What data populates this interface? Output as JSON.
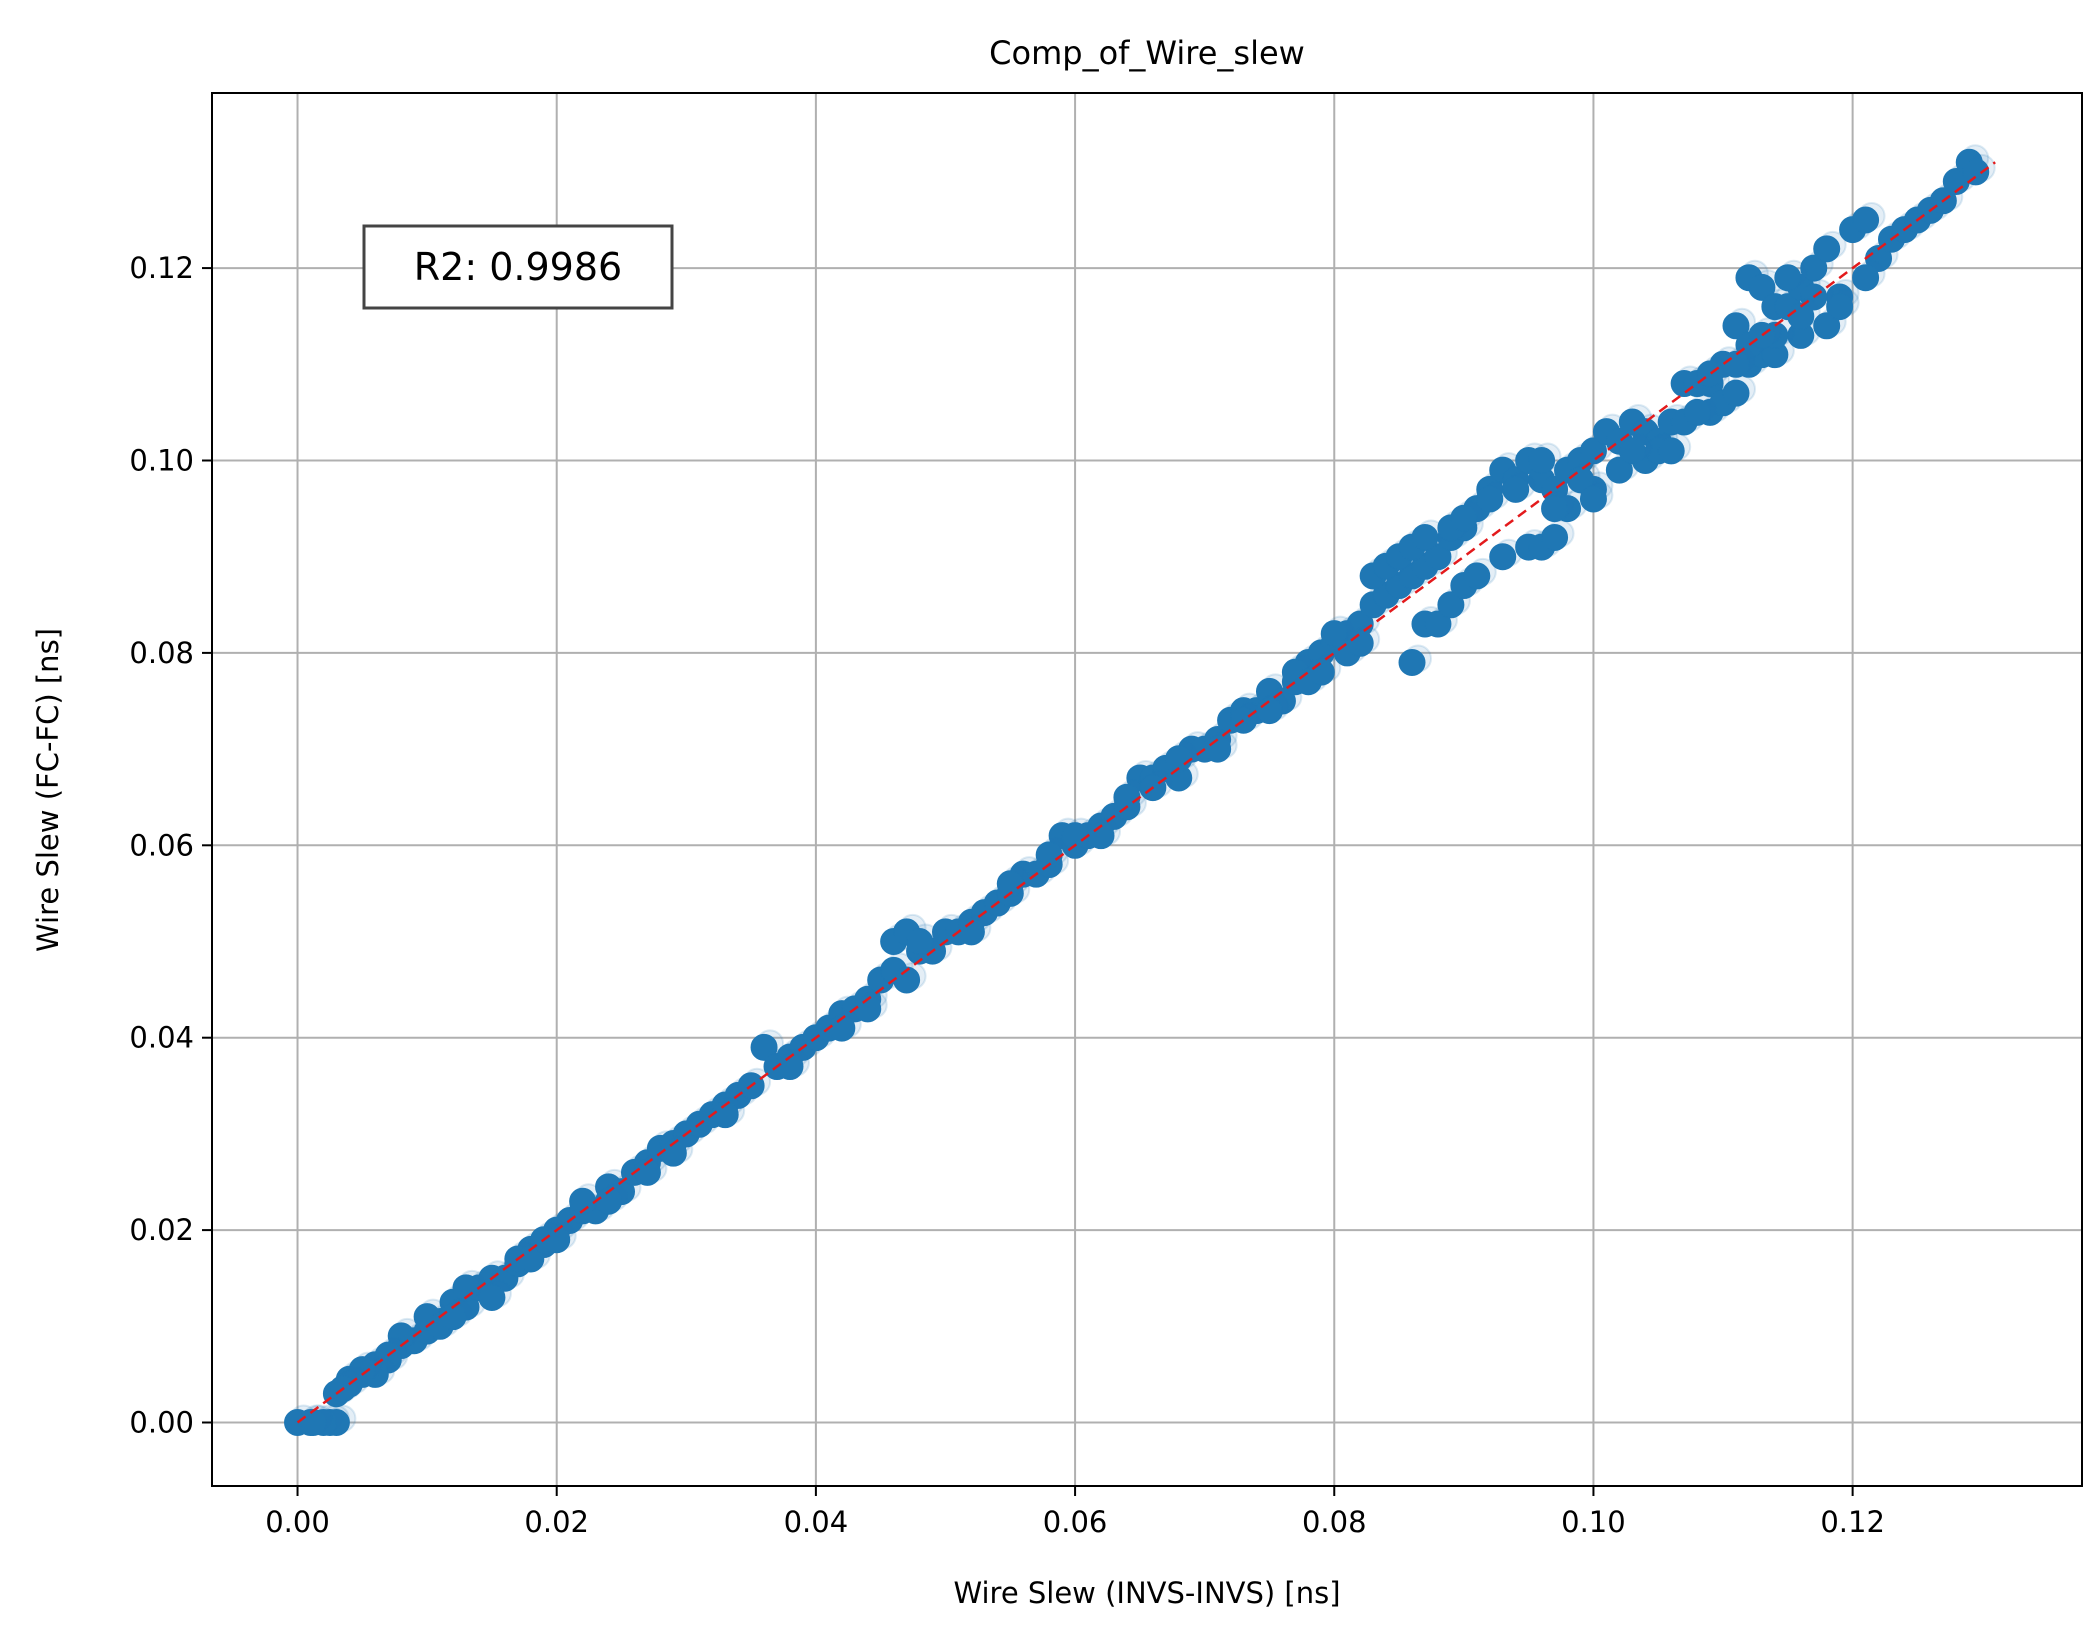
{
  "chart_data": {
    "type": "scatter",
    "title": "Comp_of_Wire_slew",
    "xlabel": "Wire Slew (INVS-INVS) [ns]",
    "ylabel": "Wire Slew (FC-FC) [ns]",
    "xlim": [
      -0.0066,
      0.1377
    ],
    "ylim": [
      -0.0066,
      0.1382
    ],
    "xticks": [
      0.0,
      0.02,
      0.04,
      0.06,
      0.08,
      0.1,
      0.12
    ],
    "xtick_labels": [
      "0.00",
      "0.02",
      "0.04",
      "0.06",
      "0.08",
      "0.10",
      "0.12"
    ],
    "yticks": [
      0.0,
      0.02,
      0.04,
      0.06,
      0.08,
      0.1,
      0.12
    ],
    "ytick_labels": [
      "0.00",
      "0.02",
      "0.04",
      "0.06",
      "0.08",
      "0.10",
      "0.12"
    ],
    "grid": true,
    "annotation": "R2: 0.9986",
    "annotation_position": "top-left",
    "point_color": "#1f77b4",
    "reference_line": {
      "style": "dashed",
      "color": "#e31a1c",
      "from": [
        0.0,
        0.0
      ],
      "to": [
        0.131,
        0.131
      ]
    },
    "series": [
      {
        "points": [
          [
            0.0,
            0.0
          ],
          [
            0.001,
            0.0
          ],
          [
            0.0025,
            0.0
          ],
          [
            0.003,
            0.0
          ],
          [
            0.002,
            0.0
          ],
          [
            0.0012,
            0.0
          ],
          [
            0.003,
            0.003
          ],
          [
            0.004,
            0.0045
          ],
          [
            0.005,
            0.005
          ],
          [
            0.006,
            0.006
          ],
          [
            0.007,
            0.0065
          ],
          [
            0.008,
            0.008
          ],
          [
            0.009,
            0.0085
          ],
          [
            0.01,
            0.0095
          ],
          [
            0.011,
            0.0105
          ],
          [
            0.012,
            0.0125
          ],
          [
            0.013,
            0.012
          ],
          [
            0.014,
            0.014
          ],
          [
            0.015,
            0.015
          ],
          [
            0.016,
            0.015
          ],
          [
            0.017,
            0.0165
          ],
          [
            0.018,
            0.018
          ],
          [
            0.019,
            0.0185
          ],
          [
            0.02,
            0.02
          ],
          [
            0.021,
            0.021
          ],
          [
            0.022,
            0.022
          ],
          [
            0.023,
            0.022
          ],
          [
            0.024,
            0.0245
          ],
          [
            0.025,
            0.024
          ],
          [
            0.026,
            0.026
          ],
          [
            0.027,
            0.027
          ],
          [
            0.028,
            0.0285
          ],
          [
            0.029,
            0.029
          ],
          [
            0.03,
            0.03
          ],
          [
            0.031,
            0.031
          ],
          [
            0.032,
            0.032
          ],
          [
            0.033,
            0.033
          ],
          [
            0.034,
            0.034
          ],
          [
            0.035,
            0.035
          ],
          [
            0.036,
            0.039
          ],
          [
            0.037,
            0.037
          ],
          [
            0.038,
            0.038
          ],
          [
            0.039,
            0.039
          ],
          [
            0.04,
            0.04
          ],
          [
            0.041,
            0.041
          ],
          [
            0.042,
            0.0425
          ],
          [
            0.043,
            0.043
          ],
          [
            0.044,
            0.044
          ],
          [
            0.045,
            0.046
          ],
          [
            0.046,
            0.05
          ],
          [
            0.047,
            0.051
          ],
          [
            0.048,
            0.049
          ],
          [
            0.049,
            0.049
          ],
          [
            0.05,
            0.051
          ],
          [
            0.051,
            0.051
          ],
          [
            0.052,
            0.052
          ],
          [
            0.053,
            0.053
          ],
          [
            0.054,
            0.054
          ],
          [
            0.055,
            0.055
          ],
          [
            0.056,
            0.057
          ],
          [
            0.057,
            0.057
          ],
          [
            0.058,
            0.058
          ],
          [
            0.059,
            0.061
          ],
          [
            0.06,
            0.06
          ],
          [
            0.061,
            0.061
          ],
          [
            0.062,
            0.062
          ],
          [
            0.063,
            0.063
          ],
          [
            0.064,
            0.064
          ],
          [
            0.065,
            0.067
          ],
          [
            0.066,
            0.067
          ],
          [
            0.067,
            0.068
          ],
          [
            0.068,
            0.067
          ],
          [
            0.069,
            0.07
          ],
          [
            0.07,
            0.07
          ],
          [
            0.071,
            0.071
          ],
          [
            0.072,
            0.073
          ],
          [
            0.073,
            0.074
          ],
          [
            0.074,
            0.074
          ],
          [
            0.075,
            0.076
          ],
          [
            0.076,
            0.075
          ],
          [
            0.077,
            0.077
          ],
          [
            0.078,
            0.079
          ],
          [
            0.079,
            0.08
          ],
          [
            0.08,
            0.081
          ],
          [
            0.081,
            0.082
          ],
          [
            0.082,
            0.083
          ],
          [
            0.083,
            0.085
          ],
          [
            0.084,
            0.086
          ],
          [
            0.085,
            0.087
          ],
          [
            0.086,
            0.088
          ],
          [
            0.087,
            0.089
          ],
          [
            0.088,
            0.09
          ],
          [
            0.089,
            0.092
          ],
          [
            0.09,
            0.093
          ],
          [
            0.091,
            0.095
          ],
          [
            0.092,
            0.097
          ],
          [
            0.093,
            0.099
          ],
          [
            0.094,
            0.098
          ],
          [
            0.095,
            0.1
          ],
          [
            0.096,
            0.098
          ],
          [
            0.097,
            0.097
          ],
          [
            0.098,
            0.099
          ],
          [
            0.099,
            0.1
          ],
          [
            0.1,
            0.101
          ],
          [
            0.101,
            0.103
          ],
          [
            0.102,
            0.102
          ],
          [
            0.103,
            0.104
          ],
          [
            0.104,
            0.103
          ],
          [
            0.105,
            0.102
          ],
          [
            0.106,
            0.104
          ],
          [
            0.107,
            0.108
          ],
          [
            0.108,
            0.108
          ],
          [
            0.109,
            0.108
          ],
          [
            0.11,
            0.11
          ],
          [
            0.111,
            0.114
          ],
          [
            0.112,
            0.119
          ],
          [
            0.113,
            0.118
          ],
          [
            0.114,
            0.116
          ],
          [
            0.115,
            0.116
          ],
          [
            0.116,
            0.118
          ],
          [
            0.117,
            0.12
          ],
          [
            0.118,
            0.122
          ],
          [
            0.119,
            0.117
          ],
          [
            0.12,
            0.124
          ],
          [
            0.121,
            0.125
          ],
          [
            0.122,
            0.121
          ],
          [
            0.123,
            0.123
          ],
          [
            0.124,
            0.124
          ],
          [
            0.125,
            0.125
          ],
          [
            0.126,
            0.126
          ],
          [
            0.127,
            0.127
          ],
          [
            0.128,
            0.129
          ],
          [
            0.129,
            0.131
          ],
          [
            0.1295,
            0.13
          ],
          [
            0.086,
            0.079
          ],
          [
            0.087,
            0.083
          ],
          [
            0.088,
            0.083
          ],
          [
            0.089,
            0.085
          ],
          [
            0.09,
            0.087
          ],
          [
            0.091,
            0.088
          ],
          [
            0.093,
            0.09
          ],
          [
            0.095,
            0.091
          ],
          [
            0.096,
            0.091
          ],
          [
            0.097,
            0.092
          ],
          [
            0.098,
            0.095
          ],
          [
            0.1,
            0.097
          ],
          [
            0.102,
            0.099
          ],
          [
            0.104,
            0.1
          ],
          [
            0.105,
            0.101
          ],
          [
            0.107,
            0.104
          ],
          [
            0.109,
            0.105
          ],
          [
            0.11,
            0.106
          ],
          [
            0.111,
            0.107
          ],
          [
            0.112,
            0.11
          ],
          [
            0.113,
            0.111
          ],
          [
            0.114,
            0.111
          ],
          [
            0.116,
            0.113
          ],
          [
            0.118,
            0.114
          ],
          [
            0.119,
            0.116
          ],
          [
            0.112,
            0.112
          ],
          [
            0.114,
            0.113
          ],
          [
            0.117,
            0.117
          ],
          [
            0.121,
            0.119
          ],
          [
            0.115,
            0.119
          ],
          [
            0.083,
            0.088
          ],
          [
            0.084,
            0.089
          ],
          [
            0.085,
            0.09
          ],
          [
            0.086,
            0.091
          ],
          [
            0.087,
            0.092
          ],
          [
            0.089,
            0.093
          ],
          [
            0.09,
            0.094
          ],
          [
            0.092,
            0.096
          ],
          [
            0.094,
            0.097
          ],
          [
            0.096,
            0.1
          ],
          [
            0.097,
            0.095
          ],
          [
            0.099,
            0.098
          ],
          [
            0.1,
            0.096
          ],
          [
            0.103,
            0.101
          ],
          [
            0.106,
            0.101
          ],
          [
            0.108,
            0.105
          ],
          [
            0.109,
            0.109
          ],
          [
            0.111,
            0.11
          ],
          [
            0.113,
            0.113
          ],
          [
            0.116,
            0.115
          ],
          [
            0.022,
            0.023
          ],
          [
            0.024,
            0.023
          ],
          [
            0.027,
            0.026
          ],
          [
            0.029,
            0.028
          ],
          [
            0.033,
            0.032
          ],
          [
            0.038,
            0.037
          ],
          [
            0.042,
            0.041
          ],
          [
            0.044,
            0.043
          ],
          [
            0.046,
            0.047
          ],
          [
            0.047,
            0.046
          ],
          [
            0.048,
            0.05
          ],
          [
            0.052,
            0.051
          ],
          [
            0.055,
            0.056
          ],
          [
            0.058,
            0.059
          ],
          [
            0.06,
            0.061
          ],
          [
            0.062,
            0.061
          ],
          [
            0.064,
            0.065
          ],
          [
            0.066,
            0.066
          ],
          [
            0.068,
            0.069
          ],
          [
            0.071,
            0.07
          ],
          [
            0.073,
            0.073
          ],
          [
            0.075,
            0.074
          ],
          [
            0.077,
            0.078
          ],
          [
            0.078,
            0.077
          ],
          [
            0.079,
            0.078
          ],
          [
            0.08,
            0.082
          ],
          [
            0.081,
            0.08
          ],
          [
            0.082,
            0.081
          ],
          [
            0.013,
            0.014
          ],
          [
            0.015,
            0.013
          ],
          [
            0.017,
            0.017
          ],
          [
            0.018,
            0.017
          ],
          [
            0.019,
            0.019
          ],
          [
            0.02,
            0.019
          ],
          [
            0.01,
            0.011
          ],
          [
            0.011,
            0.01
          ],
          [
            0.012,
            0.011
          ],
          [
            0.008,
            0.009
          ],
          [
            0.007,
            0.007
          ],
          [
            0.006,
            0.005
          ],
          [
            0.005,
            0.0055
          ],
          [
            0.004,
            0.004
          ],
          [
            0.0035,
            0.0035
          ]
        ]
      }
    ]
  }
}
